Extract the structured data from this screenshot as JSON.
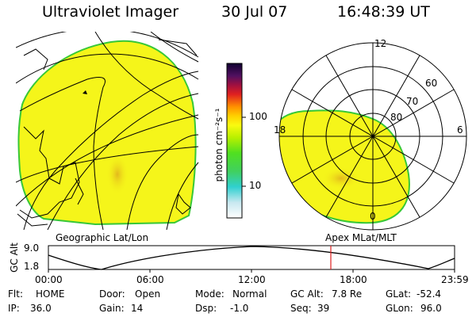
{
  "header": {
    "title": "Ultraviolet Imager",
    "date": "30 Jul 07",
    "time": "16:48:39 UT"
  },
  "colorbar": {
    "unit_label": "photon cm⁻²s⁻¹",
    "tick_high": "100",
    "tick_low": "10"
  },
  "panels": {
    "left_caption": "Geographic Lat/Lon",
    "right_caption": "Apex MLat/MLT",
    "polar_labels": {
      "mlt_12": "12",
      "mlt_18": "18",
      "mlt_6": "6",
      "mlt_0": "0",
      "lat_60": "60",
      "lat_70": "70",
      "lat_80": "80"
    }
  },
  "altitude_plot": {
    "ylabel": "GC Alt",
    "ytick_high": "9.0",
    "ytick_low": "1.8",
    "xticks": [
      "00:00",
      "06:00",
      "12:00",
      "18:00",
      "23:59"
    ],
    "current_time_marker": "16:48"
  },
  "status": {
    "flt_label": "Flt:",
    "flt_value": "HOME",
    "ip_label": "IP:",
    "ip_value": "36.0",
    "door_label": "Door:",
    "door_value": "Open",
    "gain_label": "Gain:",
    "gain_value": "14",
    "mode_label": "Mode:",
    "mode_value": "Normal",
    "dsp_label": "Dsp:",
    "dsp_value": "-1.0",
    "gcalt_label": "GC Alt:",
    "gcalt_value": "7.8 Re",
    "seq_label": "Seq:",
    "seq_value": "39",
    "glat_label": "GLat:",
    "glat_value": "-52.4",
    "glon_label": "GLon:",
    "glon_value": "96.0"
  },
  "colors": {
    "emission_fill": "#f5f51a",
    "emission_edge": "#37c837",
    "emission_spot": "#e6c21a"
  }
}
